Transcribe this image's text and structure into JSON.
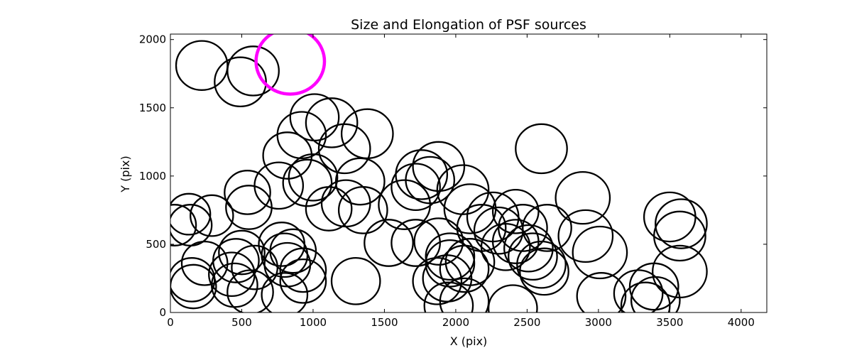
{
  "chart_data": {
    "type": "scatter",
    "title": "Size and Elongation of PSF sources",
    "xlabel": "X (pix)",
    "ylabel": "Y (pix)",
    "xlim": [
      0,
      4180
    ],
    "ylim": [
      0,
      2040
    ],
    "xticks": [
      0,
      500,
      1000,
      1500,
      2000,
      2500,
      3000,
      3500,
      4000
    ],
    "yticks": [
      0,
      500,
      1000,
      1500,
      2000
    ],
    "grid": false,
    "marker": "ellipse",
    "colors": {
      "normal": "#000000",
      "highlight": "#ff00ff"
    },
    "series": [
      {
        "values": [
          [
            220,
            1810,
            180
          ],
          [
            580,
            1770,
            180
          ],
          [
            490,
            1690,
            180
          ],
          [
            1010,
            1430,
            170
          ],
          [
            1130,
            1390,
            180
          ],
          [
            920,
            1300,
            170
          ],
          [
            1380,
            1310,
            180
          ],
          [
            1220,
            1200,
            180
          ],
          [
            820,
            1150,
            170
          ],
          [
            2600,
            1200,
            180
          ],
          [
            1000,
            990,
            170
          ],
          [
            960,
            950,
            170
          ],
          [
            760,
            930,
            170
          ],
          [
            1330,
            960,
            170
          ],
          [
            1760,
            1010,
            180
          ],
          [
            1880,
            1070,
            180
          ],
          [
            1820,
            970,
            170
          ],
          [
            1720,
            920,
            170
          ],
          [
            2050,
            900,
            180
          ],
          [
            2890,
            840,
            190
          ],
          [
            540,
            880,
            160
          ],
          [
            550,
            770,
            160
          ],
          [
            1110,
            760,
            160
          ],
          [
            1230,
            800,
            170
          ],
          [
            1350,
            750,
            170
          ],
          [
            1640,
            790,
            180
          ],
          [
            2100,
            760,
            180
          ],
          [
            2260,
            700,
            180
          ],
          [
            130,
            720,
            150
          ],
          [
            290,
            710,
            150
          ],
          [
            30,
            640,
            150
          ],
          [
            140,
            640,
            150
          ],
          [
            2420,
            740,
            160
          ],
          [
            2640,
            620,
            170
          ],
          [
            2470,
            620,
            170
          ],
          [
            2910,
            560,
            190
          ],
          [
            3010,
            440,
            190
          ],
          [
            3500,
            700,
            180
          ],
          [
            3580,
            650,
            180
          ],
          [
            3570,
            560,
            180
          ],
          [
            2180,
            620,
            170
          ],
          [
            2300,
            600,
            170
          ],
          [
            2350,
            480,
            170
          ],
          [
            2420,
            520,
            160
          ],
          [
            2510,
            470,
            170
          ],
          [
            2540,
            410,
            170
          ],
          [
            2600,
            350,
            170
          ],
          [
            2620,
            300,
            170
          ],
          [
            1530,
            510,
            170
          ],
          [
            1720,
            510,
            170
          ],
          [
            1880,
            520,
            170
          ],
          [
            1960,
            410,
            170
          ],
          [
            2100,
            370,
            170
          ],
          [
            2060,
            320,
            170
          ],
          [
            1960,
            360,
            170
          ],
          [
            1870,
            230,
            170
          ],
          [
            1940,
            250,
            170
          ],
          [
            1950,
            50,
            170
          ],
          [
            2060,
            80,
            170
          ],
          [
            2400,
            30,
            170
          ],
          [
            780,
            500,
            160
          ],
          [
            860,
            450,
            160
          ],
          [
            800,
            420,
            160
          ],
          [
            820,
            350,
            160
          ],
          [
            930,
            310,
            160
          ],
          [
            930,
            230,
            160
          ],
          [
            800,
            130,
            160
          ],
          [
            1300,
            230,
            170
          ],
          [
            500,
            440,
            160
          ],
          [
            460,
            380,
            160
          ],
          [
            590,
            330,
            160
          ],
          [
            430,
            280,
            160
          ],
          [
            450,
            200,
            160
          ],
          [
            560,
            150,
            160
          ],
          [
            240,
            360,
            160
          ],
          [
            150,
            240,
            160
          ],
          [
            160,
            190,
            160
          ],
          [
            3020,
            120,
            170
          ],
          [
            3280,
            140,
            170
          ],
          [
            3390,
            190,
            170
          ],
          [
            3400,
            90,
            170
          ],
          [
            3330,
            50,
            170
          ],
          [
            3570,
            300,
            190
          ]
        ]
      }
    ],
    "highlight": [
      [
        840,
        1840,
        240
      ]
    ]
  }
}
